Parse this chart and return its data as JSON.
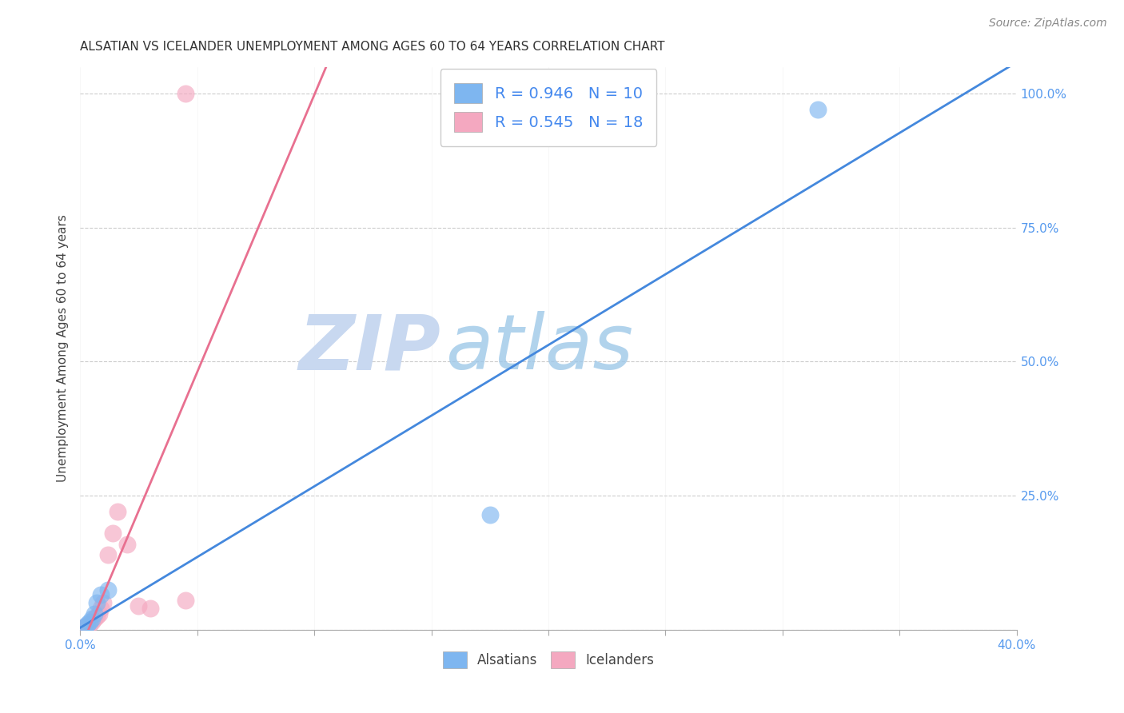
{
  "title": "ALSATIAN VS ICELANDER UNEMPLOYMENT AMONG AGES 60 TO 64 YEARS CORRELATION CHART",
  "source": "Source: ZipAtlas.com",
  "ylabel": "Unemployment Among Ages 60 to 64 years",
  "xlim": [
    0.0,
    0.4
  ],
  "ylim": [
    0.0,
    1.05
  ],
  "x_tick_positions": [
    0.0,
    0.05,
    0.1,
    0.15,
    0.2,
    0.25,
    0.3,
    0.35,
    0.4
  ],
  "y_ticks_right": [
    0.0,
    0.25,
    0.5,
    0.75,
    1.0
  ],
  "y_tick_labels_right": [
    "",
    "25.0%",
    "50.0%",
    "75.0%",
    "100.0%"
  ],
  "alsatians_x": [
    0.002,
    0.003,
    0.004,
    0.005,
    0.006,
    0.007,
    0.009,
    0.012,
    0.175,
    0.315
  ],
  "alsatians_y": [
    0.005,
    0.01,
    0.015,
    0.02,
    0.03,
    0.05,
    0.065,
    0.075,
    0.215,
    0.97
  ],
  "icelanders_x": [
    0.001,
    0.002,
    0.003,
    0.004,
    0.005,
    0.006,
    0.007,
    0.008,
    0.009,
    0.01,
    0.012,
    0.014,
    0.016,
    0.02,
    0.025,
    0.03,
    0.045,
    0.045
  ],
  "icelanders_y": [
    0.002,
    0.005,
    0.008,
    0.01,
    0.015,
    0.02,
    0.025,
    0.03,
    0.04,
    0.05,
    0.14,
    0.18,
    0.22,
    0.16,
    0.045,
    0.04,
    0.055,
    1.0
  ],
  "alsatian_R": 0.946,
  "alsatian_N": 10,
  "icelander_R": 0.545,
  "icelander_N": 18,
  "color_alsatian": "#7EB6F0",
  "color_icelander": "#F4A8C0",
  "color_line_alsatian": "#4488DD",
  "color_line_icelander": "#E87090",
  "watermark_zip_color": "#C8D8F0",
  "watermark_atlas_color": "#9EC8E8",
  "grid_color": "#CCCCCC",
  "title_fontsize": 11,
  "axis_label_fontsize": 11,
  "tick_fontsize": 11,
  "legend_fontsize": 14,
  "source_fontsize": 10
}
